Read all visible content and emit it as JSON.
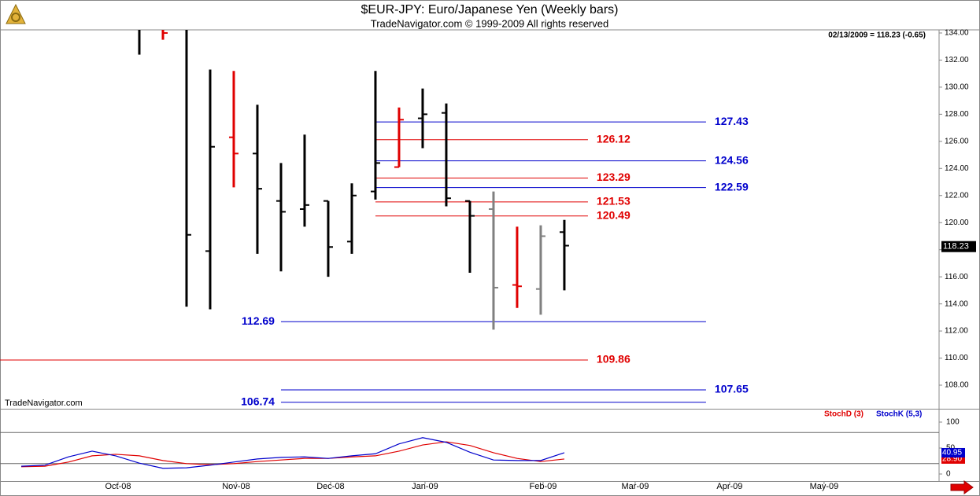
{
  "chart_data": [
    {
      "type": "ohlc",
      "title": "$EUR-JPY:  Euro/Japanese Yen  (Weekly bars)",
      "subtitle": "TradeNavigator.com © 1999-2009 All rights reserved",
      "header_note": "02/13/2009 = 118.23 (-0.65)",
      "watermark": "TradeNavigator.com",
      "x": [
        5,
        6,
        7,
        8,
        9,
        10,
        11,
        12,
        13,
        14,
        15,
        16,
        17,
        18,
        19,
        20,
        21,
        22,
        23
      ],
      "open": [
        134.3,
        134.6,
        135,
        117.9,
        126.3,
        125.1,
        121.6,
        121.0,
        121.6,
        118.6,
        122.3,
        124.1,
        127.7,
        128.1,
        121.6,
        121.0,
        115.4,
        115.1,
        119.3
      ],
      "high": [
        135,
        135,
        135,
        131.3,
        131.2,
        128.7,
        124.4,
        126.5,
        121.6,
        122.9,
        131.2,
        128.5,
        129.9,
        128.8,
        121.6,
        122.3,
        119.7,
        119.8,
        120.2
      ],
      "low": [
        132.4,
        133.5,
        113.8,
        113.6,
        122.6,
        117.7,
        116.4,
        119.7,
        116.0,
        117.7,
        121.7,
        124.1,
        125.5,
        121.2,
        116.3,
        112.1,
        113.7,
        113.2,
        115.0
      ],
      "close": [
        134.3,
        134.0,
        119.1,
        125.6,
        125.1,
        122.5,
        120.8,
        121.3,
        118.2,
        122.0,
        124.4,
        127.6,
        128.0,
        121.8,
        120.5,
        115.2,
        115.3,
        119.0,
        118.3
      ],
      "colors": [
        "#000000",
        "#e00000",
        "#000000",
        "#000000",
        "#e00000",
        "#000000",
        "#000000",
        "#000000",
        "#000000",
        "#000000",
        "#000000",
        "#e00000",
        "#000000",
        "#000000",
        "#000000",
        "#808080",
        "#e00000",
        "#808080",
        "#000000"
      ],
      "xlim": [
        -0.9,
        38.87
      ],
      "ylim": [
        106.26,
        134.23
      ],
      "yticks": [
        {
          "value": 108,
          "label": "108.00"
        },
        {
          "value": 110,
          "label": "110.00"
        },
        {
          "value": 112,
          "label": "112.00"
        },
        {
          "value": 114,
          "label": "114.00"
        },
        {
          "value": 116,
          "label": "116.00"
        },
        {
          "value": 118,
          "label": "118.00"
        },
        {
          "value": 120,
          "label": "120.00"
        },
        {
          "value": 122,
          "label": "122.00"
        },
        {
          "value": 124,
          "label": "124.00"
        },
        {
          "value": 126,
          "label": "126.00"
        },
        {
          "value": 128,
          "label": "128.00"
        },
        {
          "value": 130,
          "label": "130.00"
        },
        {
          "value": 132,
          "label": "132.00"
        },
        {
          "value": 134,
          "label": "134.00"
        }
      ],
      "last_value": 118.23,
      "levels": [
        {
          "value": 127.43,
          "color": "#0000cc",
          "from": 15,
          "to": 29,
          "label_side": "right"
        },
        {
          "value": 126.12,
          "color": "#e00000",
          "from": 15,
          "to": 24,
          "label_side": "right"
        },
        {
          "value": 124.56,
          "color": "#0000cc",
          "from": 15,
          "to": 29,
          "label_side": "right"
        },
        {
          "value": 123.29,
          "color": "#e00000",
          "from": 15,
          "to": 24,
          "label_side": "right"
        },
        {
          "value": 122.59,
          "color": "#0000cc",
          "from": 15,
          "to": 29,
          "label_side": "right"
        },
        {
          "value": 121.53,
          "color": "#e00000",
          "from": 15,
          "to": 24,
          "label_side": "right"
        },
        {
          "value": 120.49,
          "color": "#e00000",
          "from": 15,
          "to": 24,
          "label_side": "right"
        },
        {
          "value": 112.69,
          "color": "#0000cc",
          "from": 11,
          "to": 29,
          "label_side": "left"
        },
        {
          "value": 109.86,
          "color": "#e00000",
          "from": -0.9,
          "to": 24,
          "label_side": "right"
        },
        {
          "value": 107.65,
          "color": "#0000cc",
          "from": 11,
          "to": 29,
          "label_side": "right"
        },
        {
          "value": 106.74,
          "color": "#0000cc",
          "from": 11,
          "to": 29,
          "label_side": "left"
        }
      ]
    },
    {
      "type": "line",
      "x": [
        0,
        1,
        2,
        3,
        4,
        5,
        6,
        7,
        8,
        9,
        10,
        11,
        12,
        13,
        14,
        15,
        16,
        17,
        18,
        19,
        20,
        21,
        22,
        23
      ],
      "series": [
        {
          "name": "StochD (3)",
          "color": "#e00000",
          "last_label": "28.90",
          "values": [
            14,
            15,
            23,
            35,
            38,
            35,
            26,
            20,
            18,
            20,
            24,
            27,
            30,
            30,
            33,
            35,
            44,
            56,
            62,
            55,
            41,
            30,
            24,
            28.9
          ]
        },
        {
          "name": "StochK (5,3)",
          "color": "#0000cc",
          "last_label": "40.95",
          "values": [
            15,
            17,
            33,
            44,
            35,
            21,
            11,
            12,
            17,
            23,
            29,
            32,
            33,
            30,
            35,
            39,
            58,
            70,
            61,
            42,
            27,
            26,
            26,
            40.95
          ]
        }
      ],
      "xlim": [
        -0.9,
        38.87
      ],
      "ylim": [
        -13.6,
        124.2
      ],
      "yticks": [
        0,
        50,
        100
      ],
      "levels": [
        20,
        80
      ],
      "xticks": [
        {
          "value": 4.1,
          "label": "Oct-08"
        },
        {
          "value": 9.1,
          "label": "Nov-08"
        },
        {
          "value": 13.1,
          "label": "Dec-08"
        },
        {
          "value": 17.1,
          "label": "Jan-09"
        },
        {
          "value": 22.1,
          "label": "Feb-09"
        },
        {
          "value": 26,
          "label": "Mar-09"
        },
        {
          "value": 30,
          "label": "Apr-09"
        },
        {
          "value": 34,
          "label": "May-09"
        }
      ]
    }
  ]
}
